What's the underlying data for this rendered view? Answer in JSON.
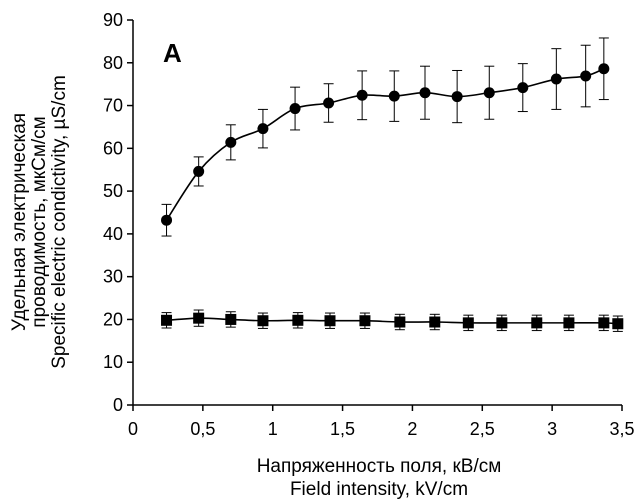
{
  "chart_data": {
    "type": "line",
    "panel_label": "A",
    "xlabel": [
      "Напряженность поля, кВ/см",
      "Field intensity, kV/cm"
    ],
    "ylabel": [
      "Удельная электрическая",
      "проводимость, мкСм/см",
      "Specific electric condictivity, µS/cm"
    ],
    "xlim": [
      0,
      3.5
    ],
    "ylim": [
      0,
      90
    ],
    "x_ticks": [
      0,
      0.5,
      1,
      1.5,
      2,
      2.5,
      3,
      3.5
    ],
    "x_tick_labels": [
      "0",
      "0,5",
      "1",
      "1,5",
      "2",
      "2,5",
      "3",
      "3,5"
    ],
    "y_ticks": [
      0,
      10,
      20,
      30,
      40,
      50,
      60,
      70,
      80,
      90
    ],
    "y_tick_labels": [
      "0",
      "10",
      "20",
      "30",
      "40",
      "50",
      "60",
      "70",
      "80",
      "90"
    ],
    "grid": false,
    "legend": "none",
    "series": [
      {
        "marker": "circle",
        "color": "#000000",
        "x": [
          0.24,
          0.47,
          0.7,
          0.93,
          1.16,
          1.4,
          1.64,
          1.87,
          2.09,
          2.32,
          2.55,
          2.79,
          3.03,
          3.24,
          3.37
        ],
        "y": [
          43.2,
          54.6,
          61.4,
          64.6,
          69.3,
          70.6,
          72.4,
          72.2,
          73.0,
          72.1,
          73.0,
          74.2,
          76.2,
          76.9,
          78.6
        ],
        "err": [
          3.7,
          3.4,
          4.1,
          4.5,
          5.0,
          4.5,
          5.7,
          5.9,
          6.2,
          6.1,
          6.2,
          5.6,
          7.1,
          7.2,
          7.2
        ]
      },
      {
        "marker": "square",
        "color": "#000000",
        "x": [
          0.24,
          0.47,
          0.7,
          0.93,
          1.18,
          1.41,
          1.66,
          1.91,
          2.16,
          2.4,
          2.64,
          2.89,
          3.12,
          3.37,
          3.47
        ],
        "y": [
          19.8,
          20.3,
          20.0,
          19.7,
          19.8,
          19.7,
          19.7,
          19.4,
          19.4,
          19.2,
          19.2,
          19.2,
          19.2,
          19.2,
          19.0
        ],
        "err": [
          1.8,
          1.9,
          1.8,
          1.8,
          1.8,
          1.8,
          1.8,
          1.8,
          1.8,
          1.8,
          1.8,
          1.8,
          1.8,
          1.8,
          1.8
        ]
      }
    ]
  }
}
